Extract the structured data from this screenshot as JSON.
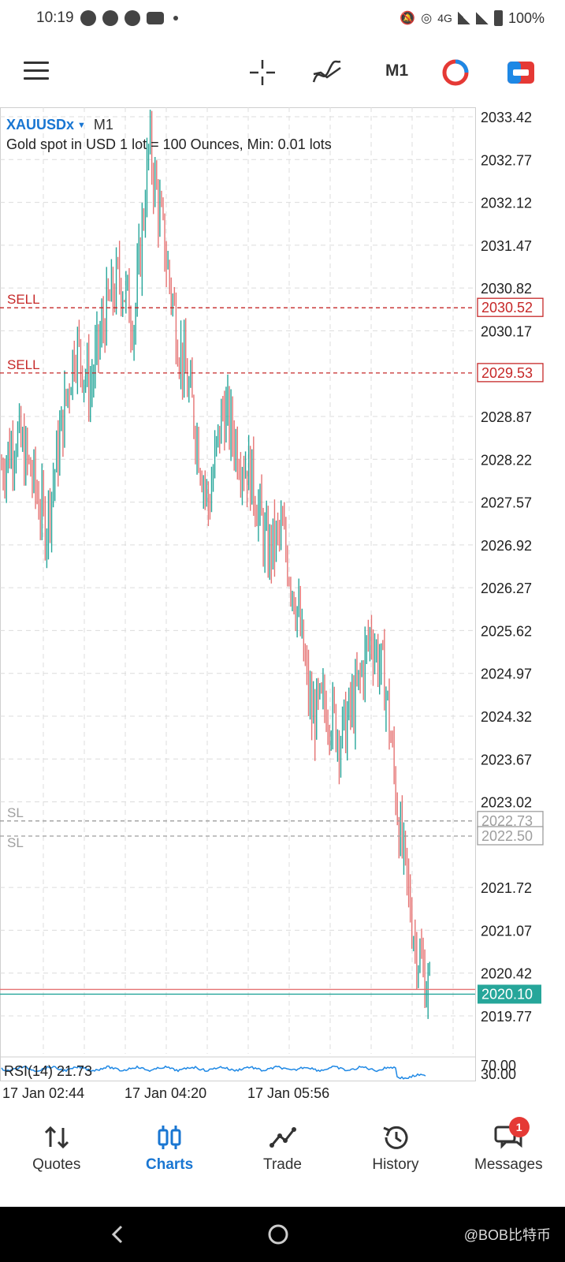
{
  "status_bar": {
    "time": "10:19",
    "network": "4G",
    "battery": "100%"
  },
  "toolbar": {
    "menu_icon": "hamburger-icon",
    "crosshair_icon": "crosshair-icon",
    "indicators_icon": "indicators-icon",
    "timeframe": "M1",
    "chart_type_icon": "chart-circle-icon",
    "trade_icon": "trade-icon"
  },
  "chart": {
    "symbol": "XAUUSDx",
    "timeframe": "M1",
    "description": "Gold spot in USD 1 lot = 100 Ounces, Min: 0.01 lots",
    "colors": {
      "bull": "#26a69a",
      "bear": "#e57373",
      "sell_line": "#c62828",
      "sl_line": "#9e9e9e",
      "rsi_line": "#1e88e5",
      "grid": "#dcdcdc"
    },
    "order_lines": [
      {
        "label": "SELL",
        "price": "2030.52",
        "type": "sell"
      },
      {
        "label": "SELL",
        "price": "2029.53",
        "type": "sell"
      },
      {
        "label": "SL",
        "price": "2022.73",
        "type": "sl"
      },
      {
        "label": "SL",
        "price": "2022.50",
        "type": "sl"
      }
    ],
    "current_price": "2020.10",
    "rsi_label": "RSI(14) 21.73",
    "rsi_levels": [
      "70.00",
      "30.00"
    ],
    "time_labels": [
      "17 Jan 02:44",
      "17 Jan 04:20",
      "17 Jan 05:56"
    ]
  },
  "chart_data": {
    "type": "candlestick",
    "y_axis_labels": [
      "2033.42",
      "2032.77",
      "2032.12",
      "2031.47",
      "2030.82",
      "2030.17",
      "2028.87",
      "2028.22",
      "2027.57",
      "2026.92",
      "2026.27",
      "2025.62",
      "2024.97",
      "2024.32",
      "2023.67",
      "2023.02",
      "2021.72",
      "2021.07",
      "2020.42",
      "2019.77"
    ],
    "ylim": [
      2019.3,
      2033.6
    ],
    "close_path": [
      2028.1,
      2028.6,
      2028.0,
      2027.2,
      2028.6,
      2030.0,
      2029.3,
      2030.4,
      2031.0,
      2030.3,
      2033.0,
      2031.5,
      2030.0,
      2028.9,
      2027.5,
      2029.0,
      2028.4,
      2027.9,
      2026.8,
      2027.1,
      2026.0,
      2024.3,
      2024.5,
      2024.0,
      2024.6,
      2025.6,
      2024.8,
      2022.5,
      2020.9,
      2020.1
    ]
  },
  "bottom_nav": [
    {
      "label": "Quotes",
      "icon": "quotes-icon"
    },
    {
      "label": "Charts",
      "icon": "charts-icon"
    },
    {
      "label": "Trade",
      "icon": "trade-icon"
    },
    {
      "label": "History",
      "icon": "history-icon"
    },
    {
      "label": "Messages",
      "icon": "messages-icon",
      "badge": "1"
    }
  ],
  "watermark": "@BOB比特币"
}
